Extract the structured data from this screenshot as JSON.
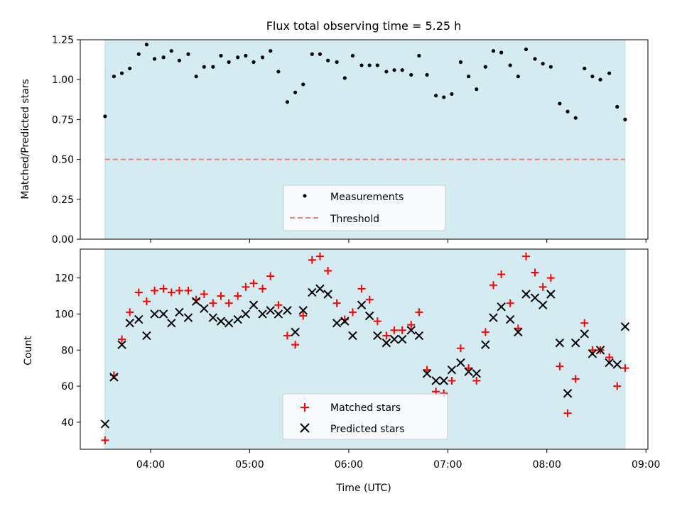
{
  "chart_data": [
    {
      "type": "scatter",
      "title": "Flux total observing time = 5.25 h",
      "xlabel": "",
      "ylabel": "Matched/Predicted stars",
      "ylim": [
        0,
        1.25
      ],
      "yticks": [
        0.0,
        0.25,
        0.5,
        0.75,
        1.0,
        1.25
      ],
      "yticklabels": [
        "0.00",
        "0.25",
        "0.50",
        "0.75",
        "1.00",
        "1.25"
      ],
      "xlim": [
        3.29,
        9.02
      ],
      "xticks": [
        4,
        5,
        6,
        7,
        8,
        9
      ],
      "observing_window": [
        3.54,
        8.79
      ],
      "grid": false,
      "legend": "lower-center",
      "series": [
        {
          "name": "Measurements",
          "marker": "dot",
          "color": "#000000",
          "x": [
            3.54,
            3.63,
            3.71,
            3.79,
            3.88,
            3.96,
            4.04,
            4.13,
            4.21,
            4.29,
            4.38,
            4.46,
            4.54,
            4.63,
            4.71,
            4.79,
            4.88,
            4.96,
            5.04,
            5.13,
            5.21,
            5.29,
            5.38,
            5.46,
            5.54,
            5.63,
            5.71,
            5.79,
            5.88,
            5.96,
            6.04,
            6.13,
            6.21,
            6.29,
            6.38,
            6.46,
            6.54,
            6.63,
            6.71,
            6.79,
            6.88,
            6.96,
            7.04,
            7.13,
            7.21,
            7.29,
            7.38,
            7.46,
            7.54,
            7.63,
            7.71,
            7.79,
            7.88,
            7.96,
            8.04,
            8.13,
            8.21,
            8.29,
            8.38,
            8.46,
            8.54,
            8.63,
            8.71,
            8.79
          ],
          "y": [
            0.77,
            1.02,
            1.04,
            1.07,
            1.16,
            1.22,
            1.13,
            1.14,
            1.18,
            1.12,
            1.16,
            1.02,
            1.08,
            1.08,
            1.15,
            1.11,
            1.14,
            1.15,
            1.11,
            1.14,
            1.18,
            1.05,
            0.86,
            0.92,
            0.97,
            1.16,
            1.16,
            1.12,
            1.11,
            1.01,
            1.15,
            1.09,
            1.09,
            1.09,
            1.05,
            1.06,
            1.06,
            1.03,
            1.15,
            1.03,
            0.9,
            0.89,
            0.91,
            1.11,
            1.02,
            0.94,
            1.08,
            1.18,
            1.17,
            1.09,
            1.02,
            1.19,
            1.13,
            1.1,
            1.08,
            0.85,
            0.8,
            0.76,
            1.07,
            1.02,
            1.0,
            1.04,
            0.83,
            0.75
          ]
        },
        {
          "name": "Threshold",
          "style": "dashed",
          "color": "#f08080",
          "x": [
            3.54,
            8.79
          ],
          "y": [
            0.5,
            0.5
          ]
        }
      ]
    },
    {
      "type": "scatter",
      "title": "",
      "xlabel": "Time (UTC)",
      "ylabel": "Count",
      "ylim": [
        25,
        136
      ],
      "yticks": [
        40,
        60,
        80,
        100,
        120
      ],
      "xlim": [
        3.29,
        9.02
      ],
      "xticks": [
        4,
        5,
        6,
        7,
        8,
        9
      ],
      "xticklabels": [
        "04:00",
        "05:00",
        "06:00",
        "07:00",
        "08:00",
        "09:00"
      ],
      "observing_window": [
        3.54,
        8.79
      ],
      "grid": false,
      "legend": "lower-center",
      "series": [
        {
          "name": "Matched stars",
          "marker": "plus",
          "color": "#ff0000",
          "x": [
            3.54,
            3.63,
            3.71,
            3.79,
            3.88,
            3.96,
            4.04,
            4.13,
            4.21,
            4.29,
            4.38,
            4.46,
            4.54,
            4.63,
            4.71,
            4.79,
            4.88,
            4.96,
            5.04,
            5.13,
            5.21,
            5.29,
            5.38,
            5.46,
            5.54,
            5.63,
            5.71,
            5.79,
            5.88,
            5.96,
            6.04,
            6.13,
            6.21,
            6.29,
            6.38,
            6.46,
            6.54,
            6.63,
            6.71,
            6.79,
            6.88,
            6.96,
            7.04,
            7.13,
            7.21,
            7.29,
            7.38,
            7.46,
            7.54,
            7.63,
            7.71,
            7.79,
            7.88,
            7.96,
            8.04,
            8.13,
            8.21,
            8.29,
            8.38,
            8.46,
            8.54,
            8.63,
            8.71,
            8.79
          ],
          "y": [
            30,
            66,
            86,
            101,
            112,
            107,
            113,
            114,
            112,
            113,
            113,
            108,
            111,
            106,
            110,
            106,
            110,
            115,
            117,
            114,
            121,
            105,
            88,
            83,
            99,
            130,
            132,
            124,
            106,
            97,
            101,
            114,
            108,
            96,
            88,
            91,
            91,
            94,
            101,
            69,
            57,
            56,
            63,
            81,
            70,
            63,
            90,
            116,
            122,
            106,
            92,
            132,
            123,
            115,
            120,
            71,
            45,
            64,
            95,
            80,
            80,
            76,
            60,
            70
          ]
        },
        {
          "name": "Predicted stars",
          "marker": "x",
          "color": "#000000",
          "x": [
            3.54,
            3.63,
            3.71,
            3.79,
            3.88,
            3.96,
            4.04,
            4.13,
            4.21,
            4.29,
            4.38,
            4.46,
            4.54,
            4.63,
            4.71,
            4.79,
            4.88,
            4.96,
            5.04,
            5.13,
            5.21,
            5.29,
            5.38,
            5.46,
            5.54,
            5.63,
            5.71,
            5.79,
            5.88,
            5.96,
            6.04,
            6.13,
            6.21,
            6.29,
            6.38,
            6.46,
            6.54,
            6.63,
            6.71,
            6.79,
            6.88,
            6.96,
            7.04,
            7.13,
            7.21,
            7.29,
            7.38,
            7.46,
            7.54,
            7.63,
            7.71,
            7.79,
            7.88,
            7.96,
            8.04,
            8.13,
            8.21,
            8.29,
            8.38,
            8.46,
            8.54,
            8.63,
            8.71,
            8.79
          ],
          "y": [
            39,
            65,
            83,
            95,
            97,
            88,
            100,
            100,
            95,
            101,
            98,
            107,
            103,
            98,
            96,
            95,
            97,
            100,
            105,
            100,
            102,
            100,
            102,
            90,
            102,
            112,
            114,
            111,
            95,
            96,
            88,
            105,
            99,
            88,
            84,
            86,
            86,
            91,
            88,
            67,
            63,
            63,
            69,
            73,
            68,
            67,
            83,
            98,
            104,
            97,
            90,
            111,
            109,
            105,
            111,
            84,
            56,
            84,
            89,
            78,
            80,
            73,
            72,
            93
          ]
        }
      ]
    }
  ],
  "colors": {
    "window_fill": "#d4ebf2",
    "window_edge": "#b8dbe6"
  }
}
